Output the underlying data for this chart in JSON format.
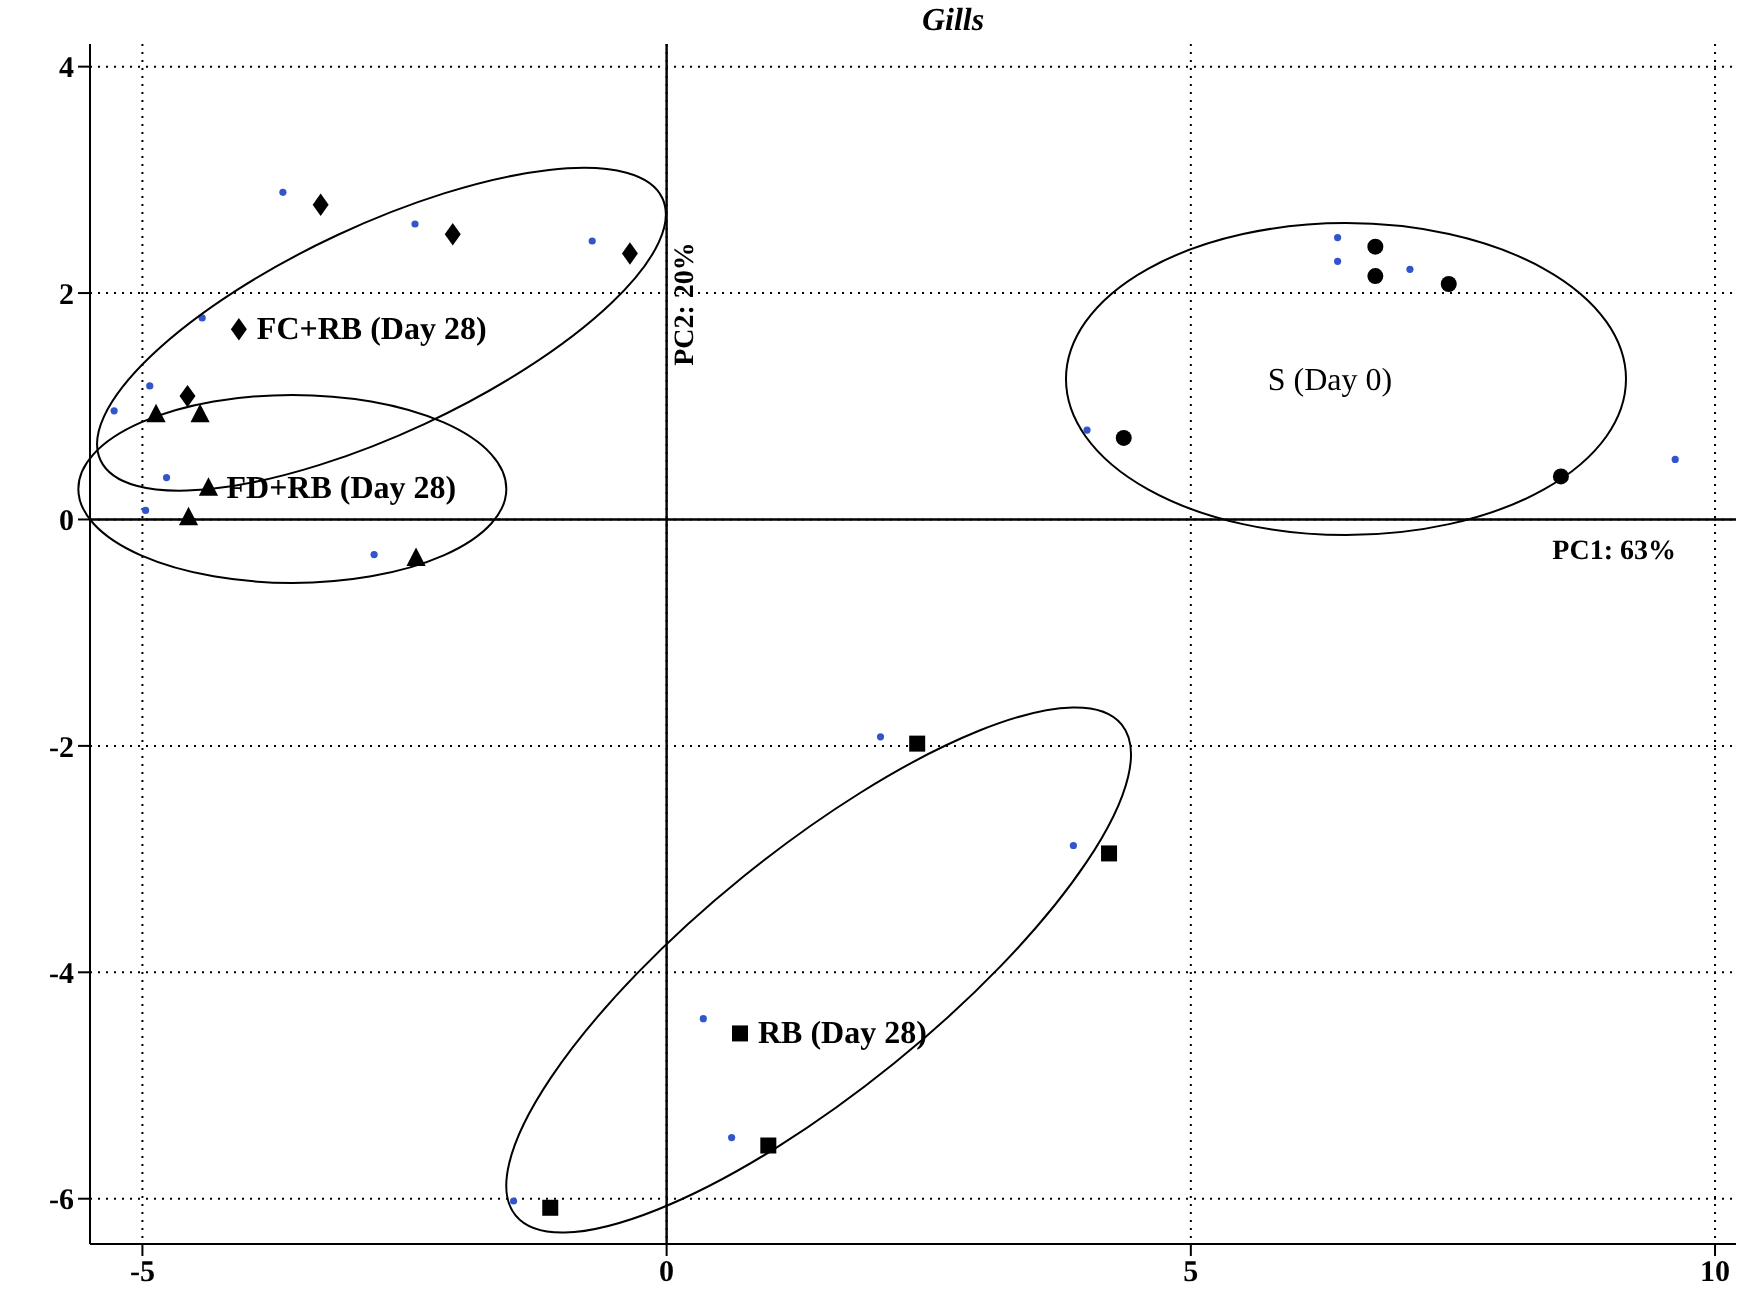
{
  "chart_data": {
    "type": "scatter",
    "title": "Gills",
    "xlim": [
      -5.5,
      10.2
    ],
    "ylim": [
      -6.4,
      4.2
    ],
    "xticks": [
      -5,
      0,
      5,
      10
    ],
    "yticks": [
      -6,
      -4,
      -2,
      0,
      2,
      4
    ],
    "grid": true,
    "legend": false,
    "series": [
      {
        "color": "#000000",
        "marker": "diamond",
        "x": [
          -3.3,
          -2.04,
          -0.35,
          -4.57,
          -4.08
        ],
        "values": [
          2.78,
          2.52,
          2.35,
          1.09,
          1.68
        ]
      },
      {
        "color": "#000000",
        "marker": "triangle",
        "x": [
          -4.87,
          -4.45,
          -4.37,
          -4.56,
          -2.39
        ],
        "values": [
          0.93,
          0.93,
          0.28,
          0.02,
          -0.34
        ]
      },
      {
        "color": "#000000",
        "marker": "circle",
        "x": [
          6.76,
          6.76,
          7.46,
          4.36,
          8.53
        ],
        "values": [
          2.41,
          2.15,
          2.08,
          0.72,
          0.38
        ]
      },
      {
        "color": "#000000",
        "marker": "square",
        "x": [
          2.39,
          4.22,
          0.7,
          0.97,
          -1.11
        ],
        "values": [
          -1.98,
          -2.95,
          -4.54,
          -5.53,
          -6.08
        ]
      },
      {
        "color": "#3355cc",
        "marker": "circle",
        "x": [
          -3.66,
          -2.4,
          -0.71,
          -4.43,
          -4.93,
          -5.27,
          -4.77,
          -4.97,
          -2.79,
          6.4,
          6.4,
          7.09,
          4.01,
          9.62,
          2.04,
          3.88,
          0.35,
          0.62,
          -1.46
        ],
        "values": [
          2.89,
          2.61,
          2.46,
          1.78,
          1.18,
          0.96,
          0.37,
          0.08,
          -0.31,
          2.49,
          2.28,
          2.21,
          0.79,
          0.53,
          -1.92,
          -2.88,
          -4.41,
          -5.46,
          -6.02
        ]
      }
    ],
    "xlabel": "PC1: 63%",
    "ylabel": "PC2: 20%",
    "annotations": [
      {
        "text": "FC+RB (Day 28)",
        "x": -4.08,
        "y": 1.68
      },
      {
        "text": "FD+RB (Day 28)",
        "x": -4.37,
        "y": 0.28
      },
      "S (Day 0)",
      {
        "text": "RB (Day 28)",
        "x": 0.7,
        "y": -4.54
      }
    ]
  }
}
